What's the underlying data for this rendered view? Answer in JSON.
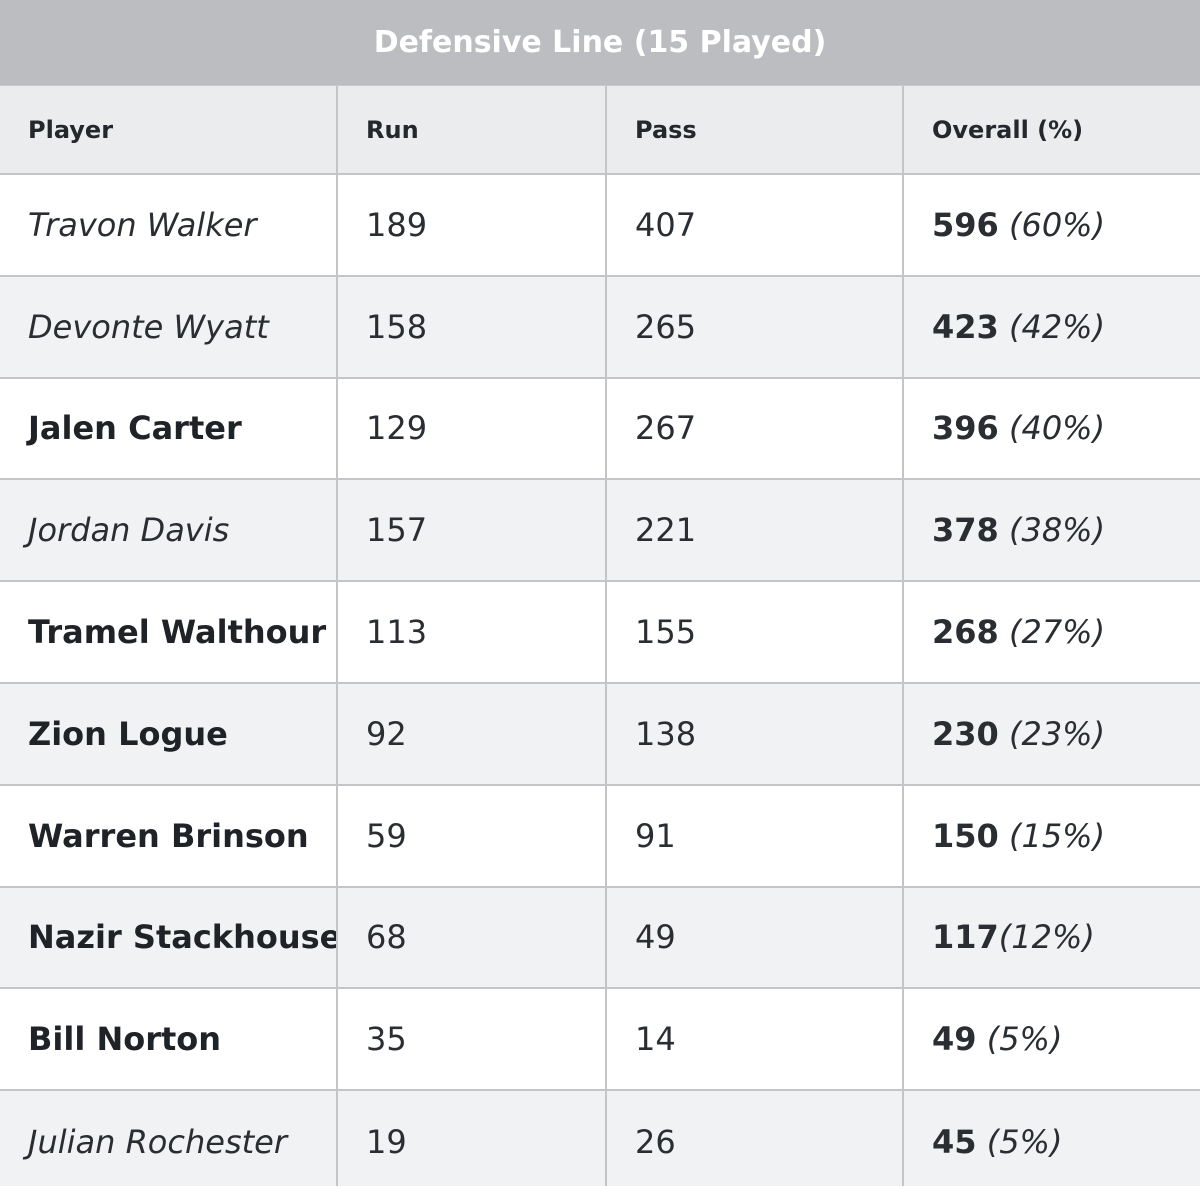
{
  "table": {
    "caption": "Defensive Line (15 Played)",
    "headers": {
      "player": "Player",
      "run": "Run",
      "pass": "Pass",
      "overall": "Overall (%)"
    },
    "rows": [
      {
        "player": "Travon Walker",
        "style": "italic",
        "run": "189",
        "pass": "407",
        "total": "596",
        "pct": " (60%)"
      },
      {
        "player": "Devonte Wyatt",
        "style": "italic",
        "run": "158",
        "pass": "265",
        "total": "423",
        "pct": " (42%)"
      },
      {
        "player": "Jalen Carter",
        "style": "bold",
        "run": "129",
        "pass": "267",
        "total": "396",
        "pct": " (40%)"
      },
      {
        "player": "Jordan Davis",
        "style": "italic",
        "run": "157",
        "pass": "221",
        "total": "378",
        "pct": " (38%)"
      },
      {
        "player": "Tramel Walthour",
        "style": "bold",
        "run": "113",
        "pass": "155",
        "total": "268",
        "pct": " (27%)"
      },
      {
        "player": "Zion Logue",
        "style": "bold",
        "run": "92",
        "pass": "138",
        "total": "230",
        "pct": " (23%)"
      },
      {
        "player": "Warren Brinson",
        "style": "bold",
        "run": "59",
        "pass": "91",
        "total": "150",
        "pct": " (15%)"
      },
      {
        "player": "Nazir Stackhouse",
        "style": "bold",
        "run": "68",
        "pass": "49",
        "total": "117",
        "pct": "(12%)"
      },
      {
        "player": "Bill Norton",
        "style": "bold",
        "run": "35",
        "pass": "14",
        "total": "49",
        "pct": " (5%)"
      },
      {
        "player": "Julian Rochester",
        "style": "italic",
        "run": "19",
        "pass": "26",
        "total": "45",
        "pct": " (5%)"
      }
    ]
  },
  "colors": {
    "caption_bg": "#bcbdc0",
    "header_bg": "#ebecee",
    "stripe_bg": "#f1f2f4",
    "border": "#c4c5c8"
  }
}
